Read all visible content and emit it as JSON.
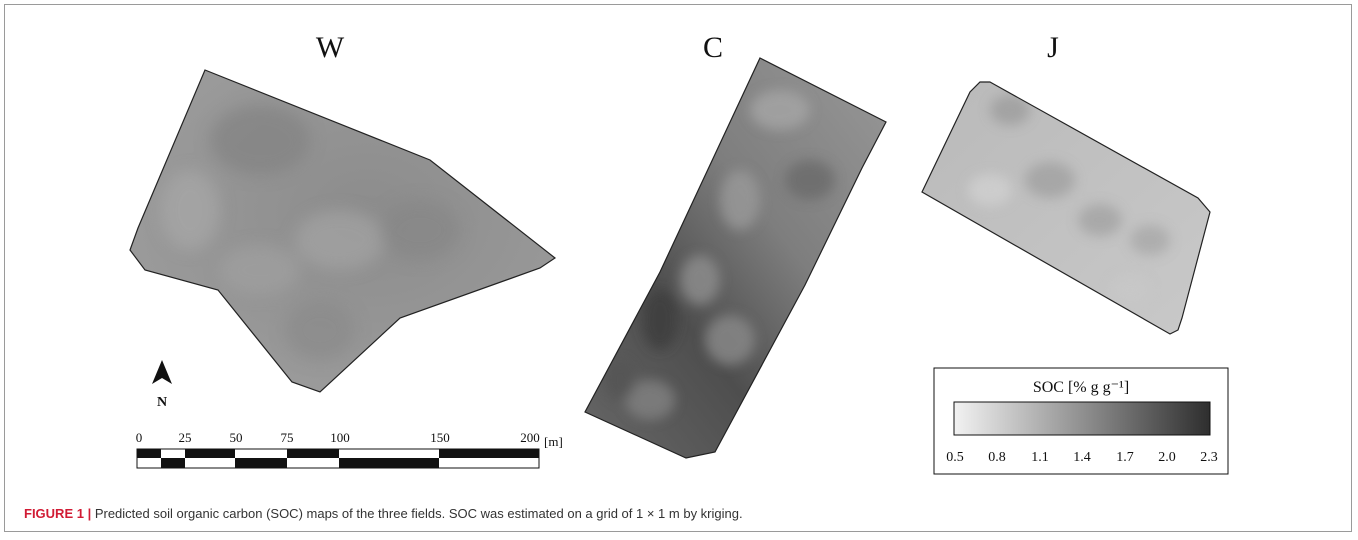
{
  "panels": [
    {
      "id": "W",
      "label": "W"
    },
    {
      "id": "C",
      "label": "C"
    },
    {
      "id": "J",
      "label": "J"
    }
  ],
  "north_arrow": {
    "label": "N"
  },
  "scale_bar": {
    "ticks": [
      "0",
      "25",
      "50",
      "75",
      "100",
      "150",
      "200"
    ],
    "unit": "[m]"
  },
  "legend": {
    "title": "SOC [% g g⁻¹]",
    "ticks": [
      "0.5",
      "0.8",
      "1.1",
      "1.4",
      "1.7",
      "2.0",
      "2.3"
    ],
    "color_low": "#f2f2f2",
    "color_high": "#2e2e2e"
  },
  "caption": {
    "label": "FIGURE 1 |",
    "text": " Predicted soil organic carbon (SOC) maps of the three fields. SOC was estimated on a grid of 1 × 1 m by kriging."
  }
}
